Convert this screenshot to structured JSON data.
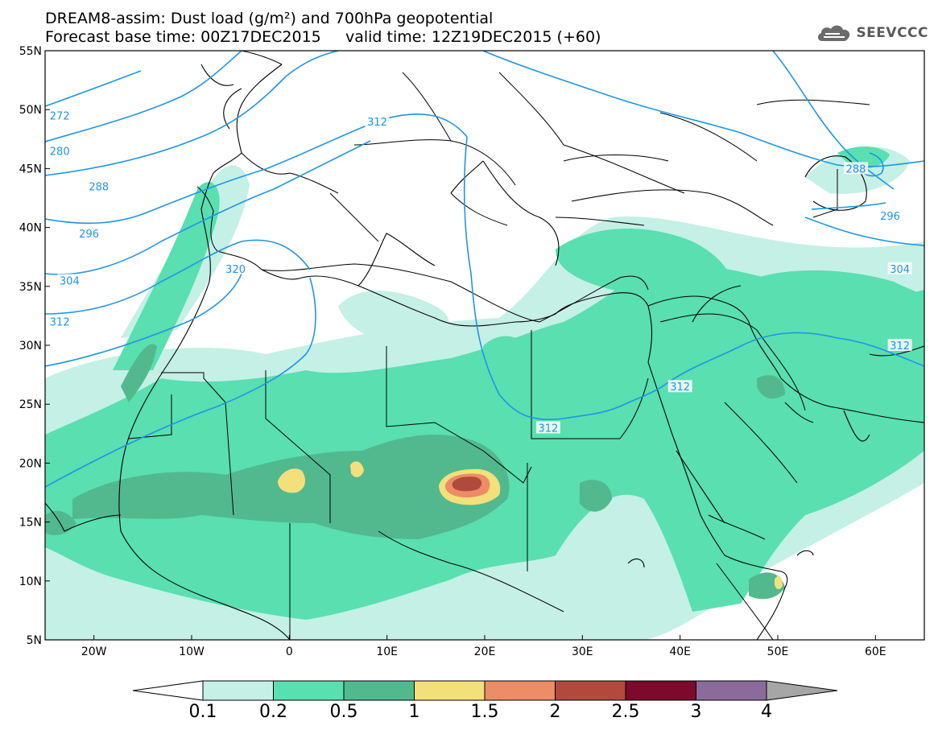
{
  "title_line1": "DREAM8-assim: Dust load (g/m²) and 700hPa geopotential",
  "title_line2": "Forecast base time: 00Z17DEC2015     valid time: 12Z19DEC2015 (+60)",
  "logo": "SEEVCCC",
  "map": {
    "lon_range": [
      -25,
      65
    ],
    "lat_range": [
      5,
      55
    ],
    "lat_ticks": [
      "5N",
      "10N",
      "15N",
      "20N",
      "25N",
      "30N",
      "35N",
      "40N",
      "45N",
      "50N",
      "55N"
    ],
    "lon_ticks": [
      "20W",
      "10W",
      "0",
      "10E",
      "20E",
      "30E",
      "40E",
      "50E",
      "60E"
    ],
    "contour_labels": [
      {
        "text": "272",
        "lon": -23.5,
        "lat": 49.5
      },
      {
        "text": "280",
        "lon": -23.5,
        "lat": 46.5
      },
      {
        "text": "288",
        "lon": -19.5,
        "lat": 43.5
      },
      {
        "text": "296",
        "lon": -20.5,
        "lat": 39.5
      },
      {
        "text": "304",
        "lon": -22.5,
        "lat": 35.5
      },
      {
        "text": "312",
        "lon": -23.5,
        "lat": 32.0
      },
      {
        "text": "320",
        "lon": -5.5,
        "lat": 36.5
      },
      {
        "text": "312",
        "lon": 9.0,
        "lat": 49.0
      },
      {
        "text": "312",
        "lon": 26.5,
        "lat": 23.0
      },
      {
        "text": "312",
        "lon": 40.0,
        "lat": 26.5
      },
      {
        "text": "312",
        "lon": 62.5,
        "lat": 30.0
      },
      {
        "text": "288",
        "lon": 58.0,
        "lat": 45.0
      },
      {
        "text": "296",
        "lon": 61.5,
        "lat": 41.0
      },
      {
        "text": "304",
        "lon": 62.5,
        "lat": 36.5
      }
    ]
  },
  "colorbar": {
    "labels": [
      "0.1",
      "0.2",
      "0.5",
      "1",
      "1.5",
      "2",
      "2.5",
      "3",
      "4"
    ],
    "colors": [
      "#c4f0e6",
      "#59dfb0",
      "#52b98f",
      "#f4e07a",
      "#eb8d67",
      "#b04a3c",
      "#7c0a2d",
      "#8b6b9c",
      "#a6a6a6"
    ]
  }
}
